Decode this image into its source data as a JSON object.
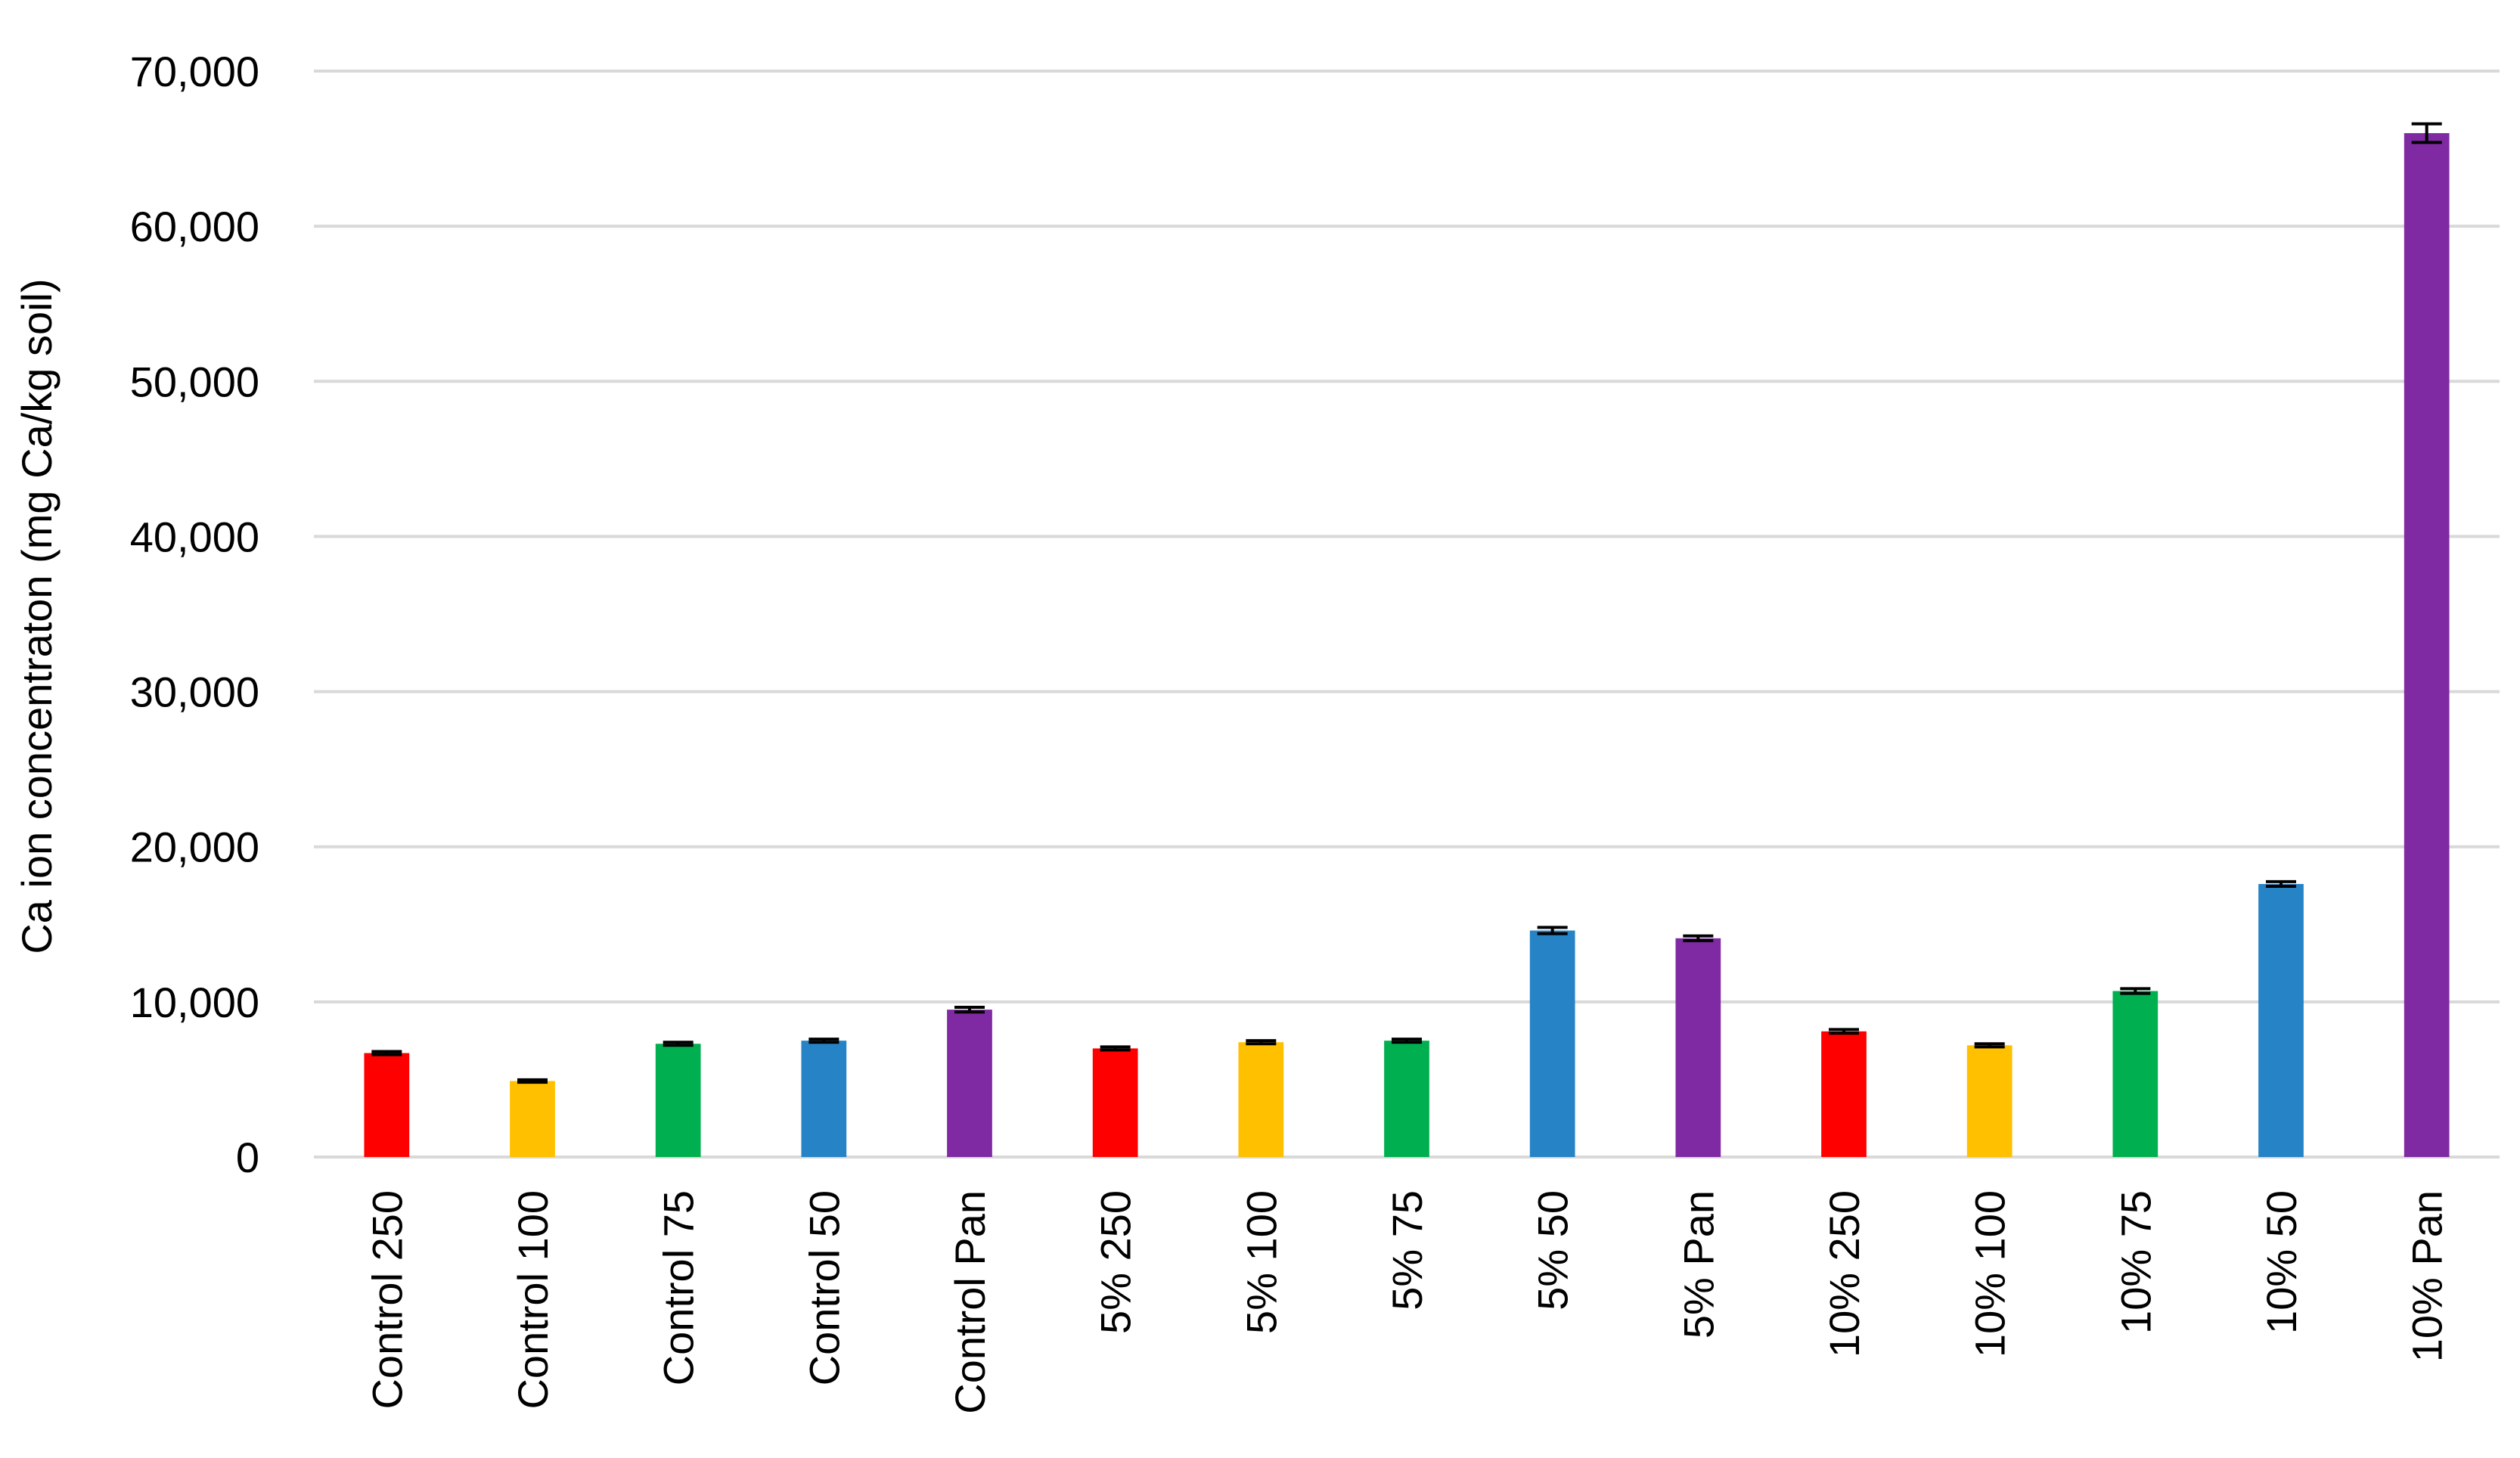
{
  "chart_data": {
    "type": "bar",
    "title": "",
    "xlabel": "",
    "ylabel": "Ca ion concentraton (mg Ca/kg soil)",
    "ylim": [
      0,
      70000
    ],
    "yticks": [
      0,
      10000,
      20000,
      30000,
      40000,
      50000,
      60000,
      70000
    ],
    "ytick_labels": [
      "0",
      "10,000",
      "20,000",
      "30,000",
      "40,000",
      "50,000",
      "60,000",
      "70,000"
    ],
    "grid": true,
    "legend": "none",
    "categories": [
      "Control 250",
      "Control 100",
      "Control 75",
      "Control 50",
      "Control Pan",
      "5% 250",
      "5% 100",
      "5% 75",
      "5% 50",
      "5% Pan",
      "10% 250",
      "10% 100",
      "10% 75",
      "10% 50",
      "10% Pan"
    ],
    "values": [
      6700,
      4900,
      7300,
      7500,
      9500,
      7000,
      7400,
      7500,
      14600,
      14100,
      8100,
      7200,
      10700,
      17600,
      66000
    ],
    "errors": [
      100,
      80,
      100,
      100,
      150,
      100,
      100,
      100,
      200,
      150,
      120,
      100,
      150,
      150,
      600
    ],
    "colors": [
      "#ff0000",
      "#ffc000",
      "#00b050",
      "#2683c6",
      "#7f2aa3",
      "#ff0000",
      "#ffc000",
      "#00b050",
      "#2683c6",
      "#7f2aa3",
      "#ff0000",
      "#ffc000",
      "#00b050",
      "#2683c6",
      "#7f2aa3"
    ]
  }
}
